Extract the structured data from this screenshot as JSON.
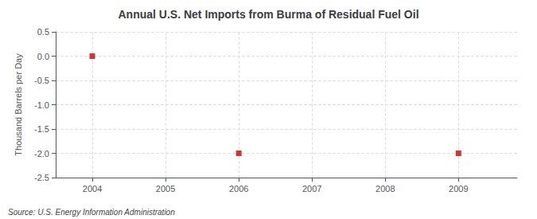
{
  "chart_data": {
    "type": "scatter",
    "title": "Annual U.S. Net Imports from Burma of Residual Fuel Oil",
    "ylabel": "Thousand Barrels per Day",
    "annotations": [
      "Source: U.S. Energy Information Administration"
    ],
    "x": [
      2004,
      2006,
      2009
    ],
    "values": [
      0.0,
      -2.0,
      -2.0
    ],
    "color": "#CC0000",
    "marker": "square",
    "xlim": [
      2003.5,
      2009.8
    ],
    "xticks": [
      2004,
      2005,
      2006,
      2007,
      2008,
      2009
    ],
    "ylim": [
      -2.5,
      0.5
    ],
    "yticks": [
      0.5,
      {
        "value": 0.0,
        "label": "0.0"
      },
      -0.5,
      {
        "value": -1.0,
        "label": "-1.0"
      },
      -1.5,
      {
        "value": -2.0,
        "label": "-2.0"
      },
      -2.5
    ],
    "grid": true
  }
}
